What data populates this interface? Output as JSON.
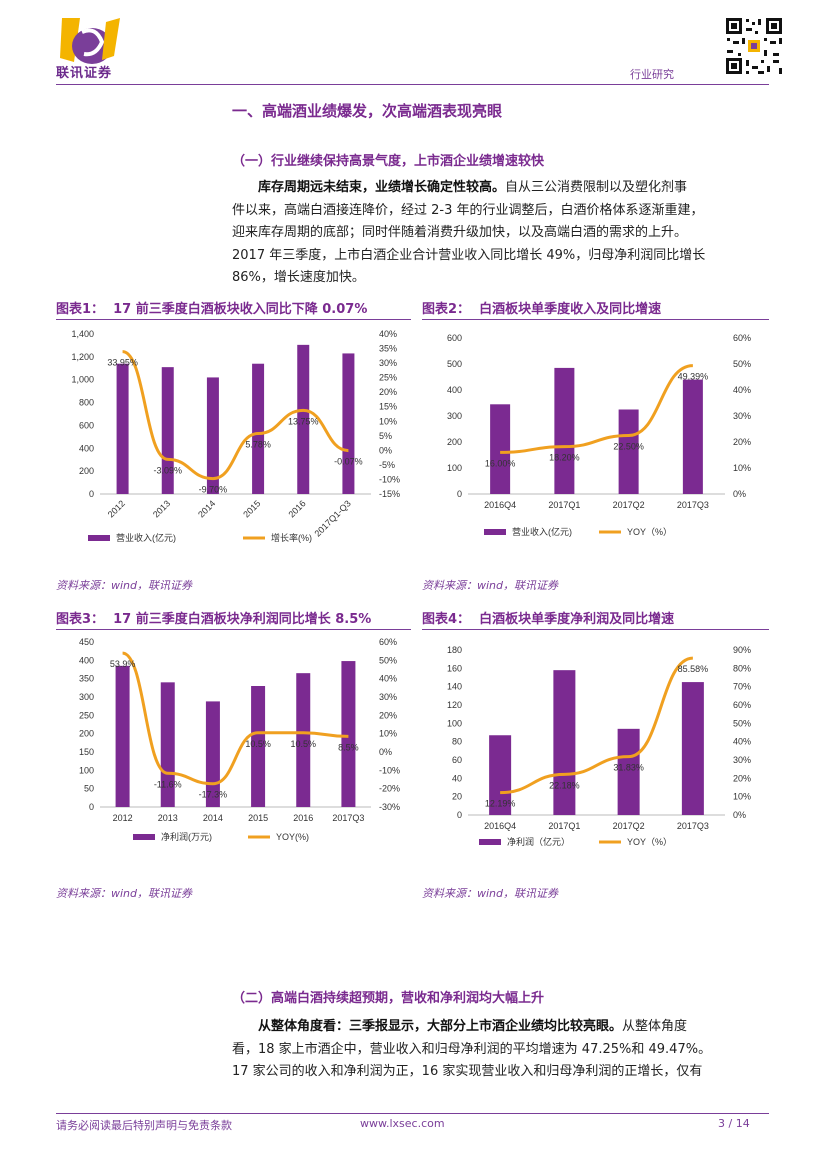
{
  "header": {
    "logo_text": "联讯证券",
    "section": "行业研究"
  },
  "h1": "一、高端酒业绩爆发，次高端酒表现亮眼",
  "h2a": "（一）行业继续保持高景气度，上市酒企业绩增速较快",
  "para1": {
    "bold": "库存周期远未结束，业绩增长确定性较高。",
    "lines": [
      "自从三公消费限制以及塑化剂事",
      "件以来，高端白酒接连降价，经过 2-3 年的行业调整后，白酒价格体系逐渐重建，",
      "迎来库存周期的底部；同时伴随着消费升级加快，以及高端白酒的需求的上升。",
      "2017 年三季度，上市白酒企业合计营业收入同比增长 49%，归母净利润同比增长",
      "86%，增长速度加快。"
    ]
  },
  "figures": [
    {
      "label": "图表1：",
      "title": "17 前三季度白酒板块收入同比下降 0.07%",
      "source": "资料来源：wind，联讯证券"
    },
    {
      "label": "图表2：",
      "title": "白酒板块单季度收入及同比增速",
      "source": "资料来源：wind，联讯证券"
    },
    {
      "label": "图表3：",
      "title": "17 前三季度白酒板块净利润同比增长 8.5%",
      "source": "资料来源：wind，联讯证券"
    },
    {
      "label": "图表4：",
      "title": "白酒板块单季度净利润及同比增速",
      "source": "资料来源：wind，联讯证券"
    }
  ],
  "chart_data": [
    {
      "type": "bar",
      "categories": [
        "2012",
        "2013",
        "2014",
        "2015",
        "2016",
        "2017Q1-Q3"
      ],
      "series": [
        {
          "name": "营业收入(亿元)",
          "kind": "bar",
          "axis": "left",
          "values": [
            1140,
            1110,
            1020,
            1140,
            1305,
            1230
          ]
        },
        {
          "name": "增长率(%)",
          "kind": "line",
          "axis": "right",
          "values": [
            33.95,
            -3.09,
            -9.7,
            5.78,
            13.75,
            -0.07
          ],
          "labels": [
            "33.95%",
            "-3.09%",
            "-9.70%",
            "5.78%",
            "13.75%",
            "-0.07%"
          ]
        }
      ],
      "left_ticks": [
        "0",
        "200",
        "400",
        "600",
        "800",
        "1,000",
        "1,200",
        "1,400"
      ],
      "left_range": [
        0,
        1400
      ],
      "right_ticks": [
        "-15%",
        "-10%",
        "-5%",
        "0%",
        "5%",
        "10%",
        "15%",
        "20%",
        "25%",
        "30%",
        "35%",
        "40%"
      ],
      "right_range": [
        -15,
        40
      ]
    },
    {
      "type": "bar",
      "categories": [
        "2016Q4",
        "2017Q1",
        "2017Q2",
        "2017Q3"
      ],
      "series": [
        {
          "name": "营业收入(亿元)",
          "kind": "bar",
          "axis": "left",
          "values": [
            345,
            485,
            325,
            440
          ]
        },
        {
          "name": "YOY（%）",
          "kind": "line",
          "axis": "right",
          "values": [
            16.0,
            18.2,
            22.5,
            49.39
          ],
          "labels": [
            "16.00%",
            "18.20%",
            "22.50%",
            "49.39%"
          ]
        }
      ],
      "left_ticks": [
        "0",
        "100",
        "200",
        "300",
        "400",
        "500",
        "600"
      ],
      "left_range": [
        0,
        600
      ],
      "right_ticks": [
        "0%",
        "10%",
        "20%",
        "30%",
        "40%",
        "50%",
        "60%"
      ],
      "right_range": [
        0,
        60
      ]
    },
    {
      "type": "bar",
      "categories": [
        "2012",
        "2013",
        "2014",
        "2015",
        "2016",
        "2017Q3"
      ],
      "series": [
        {
          "name": "净利润(万元)",
          "kind": "bar",
          "axis": "left",
          "values": [
            385,
            340,
            288,
            330,
            365,
            398
          ]
        },
        {
          "name": "YOY(%)",
          "kind": "line",
          "axis": "right",
          "values": [
            53.9,
            -11.6,
            -17.3,
            10.5,
            10.5,
            8.5
          ],
          "labels": [
            "53.9%",
            "-11.6%",
            "-17.3%",
            "10.5%",
            "10.5%",
            "8.5%"
          ]
        }
      ],
      "left_ticks": [
        "0",
        "50",
        "100",
        "150",
        "200",
        "250",
        "300",
        "350",
        "400",
        "450"
      ],
      "left_range": [
        0,
        450
      ],
      "right_ticks": [
        "-30%",
        "-20%",
        "-10%",
        "0%",
        "10%",
        "20%",
        "30%",
        "40%",
        "50%",
        "60%"
      ],
      "right_range": [
        -30,
        60
      ]
    },
    {
      "type": "bar",
      "categories": [
        "2016Q4",
        "2017Q1",
        "2017Q2",
        "2017Q3"
      ],
      "series": [
        {
          "name": "净利润（亿元）",
          "kind": "bar",
          "axis": "left",
          "values": [
            87,
            158,
            94,
            145
          ]
        },
        {
          "name": "YOY（%）",
          "kind": "line",
          "axis": "right",
          "values": [
            12.19,
            22.18,
            31.83,
            85.58
          ],
          "labels": [
            "12.19%",
            "22.18%",
            "31.83%",
            "85.58%"
          ]
        }
      ],
      "left_ticks": [
        "0",
        "20",
        "40",
        "60",
        "80",
        "100",
        "120",
        "140",
        "160",
        "180"
      ],
      "left_range": [
        0,
        180
      ],
      "right_ticks": [
        "0%",
        "10%",
        "20%",
        "30%",
        "40%",
        "50%",
        "60%",
        "70%",
        "80%",
        "90%"
      ],
      "right_range": [
        0,
        90
      ]
    }
  ],
  "h2b": "（二）高端白酒持续超预期，营收和净利润均大幅上升",
  "para2": {
    "bold": "从整体角度看：三季报显示，大部分上市酒企业绩均比较亮眼。",
    "lines": [
      "从整体角度",
      "看，18 家上市酒企中，营业收入和归母净利润的平均增速为 47.25%和 49.47%。",
      "17 家公司的收入和净利润为正，16 家实现营业收入和归母净利润的正增长，仅有"
    ]
  },
  "footer": {
    "disclaimer": "请务必阅读最后特别声明与免责条款",
    "site": "www.lxsec.com",
    "page": "3 / 14"
  },
  "colors": {
    "bar": "#7b2a91",
    "line": "#f0a020",
    "accent": "#7a3e99"
  }
}
